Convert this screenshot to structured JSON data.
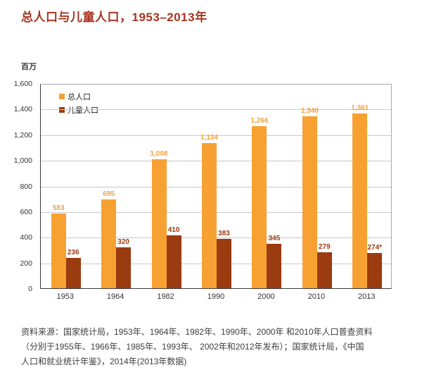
{
  "title": "总人口与儿童人口，1953–2013年",
  "colors": {
    "title": "#A63420",
    "total_population": "#F7A133",
    "children_population": "#9A3B10",
    "gridline": "#C8C8C8",
    "axis": "#3A3A3A"
  },
  "chart_data": {
    "type": "bar",
    "title": "总人口与儿童人口，1953–2013年",
    "ylabel": "百万",
    "xlabel": "",
    "categories": [
      "1953",
      "1964",
      "1982",
      "1990",
      "2000",
      "2010",
      "2013"
    ],
    "series": [
      {
        "name": "总人口",
        "color": "#F7A133",
        "values": [
          583,
          695,
          1008,
          1134,
          1266,
          1340,
          1361
        ],
        "labels": [
          "583",
          "695",
          "1,008",
          "1,134",
          "1,266",
          "1,340",
          "1,361"
        ]
      },
      {
        "name": "儿童人口",
        "color": "#9A3B10",
        "values": [
          236,
          320,
          410,
          383,
          345,
          279,
          274
        ],
        "labels": [
          "236",
          "320",
          "410",
          "383",
          "345",
          "279",
          "274*"
        ]
      }
    ],
    "ylim": [
      0,
      1600
    ],
    "yticks": [
      "1,600",
      "1,400",
      "1,200",
      "1,000",
      "800",
      "600",
      "400",
      "200",
      "0"
    ],
    "grid": true,
    "legend_position": "top-left-inside"
  },
  "source": {
    "lines": [
      "资料来源：国家统计局，1953年、1964年、1982年、1990年、2000年 和2010年人口普查资料",
      "（分别于1955年、1966年、1985年、1993年、 2002年和2012年发布）；国家统计局，《中国",
      "人口和就业统计年鉴》，2014年(2013年数据)"
    ]
  }
}
